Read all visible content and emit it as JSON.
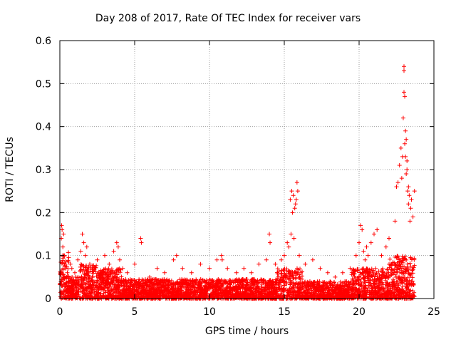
{
  "chart_data": {
    "type": "scatter",
    "title": "Day 208 of 2017, Rate Of TEC Index for receiver vars",
    "xlabel": "GPS time / hours",
    "ylabel": "ROTI / TECUs",
    "xlim": [
      0,
      25
    ],
    "ylim": [
      0,
      0.6
    ],
    "xticks": [
      "0",
      "5",
      "10",
      "15",
      "20",
      "25"
    ],
    "yticks": [
      "0",
      "0.1",
      "0.2",
      "0.3",
      "0.4",
      "0.5",
      "0.6"
    ],
    "grid": true,
    "marker": "+",
    "color": "#ff0000",
    "series": [
      {
        "x": [
          0.05,
          0.1,
          0.12,
          0.15,
          0.2,
          0.25,
          0.3,
          0.35,
          0.4,
          0.45,
          0.5,
          0.6,
          0.7,
          0.8,
          1.0,
          1.2,
          1.4,
          1.5,
          1.6,
          1.7,
          1.8,
          2.0,
          2.2,
          2.5,
          2.8,
          3.0,
          3.3,
          3.6,
          3.8,
          3.9,
          4.0,
          4.2,
          4.5,
          5.0,
          5.4,
          5.45,
          6.0,
          6.5,
          7.0,
          7.6,
          7.8,
          8.2,
          8.8,
          9.4,
          10.0,
          10.5,
          10.8,
          10.85,
          11.2,
          11.8,
          12.3,
          12.8,
          13.3,
          13.8,
          14.0,
          14.05,
          14.4,
          14.8,
          15.0,
          15.2,
          15.3,
          15.4,
          15.45,
          15.5,
          15.55,
          15.6,
          15.65,
          15.7,
          15.75,
          15.8,
          15.85,
          15.9,
          16.0,
          16.4,
          16.9,
          17.4,
          17.9,
          18.4,
          18.9,
          19.4,
          19.8,
          20.0,
          20.1,
          20.2,
          20.3,
          20.4,
          20.5,
          20.6,
          20.8,
          21.0,
          21.2,
          21.5,
          21.8,
          22.0,
          22.2,
          22.4,
          22.5,
          22.6,
          22.7,
          22.8,
          22.85,
          22.9,
          22.95,
          23.0,
          23.0,
          23.0,
          23.05,
          23.05,
          23.1,
          23.1,
          23.15,
          23.15,
          23.2,
          23.2,
          23.25,
          23.3,
          23.3,
          23.35,
          23.4,
          23.45,
          23.5,
          23.6,
          23.7
        ],
        "y": [
          0.06,
          0.14,
          0.17,
          0.16,
          0.12,
          0.15,
          0.1,
          0.08,
          0.07,
          0.05,
          0.06,
          0.05,
          0.08,
          0.07,
          0.06,
          0.09,
          0.11,
          0.15,
          0.13,
          0.1,
          0.12,
          0.08,
          0.07,
          0.09,
          0.06,
          0.1,
          0.08,
          0.11,
          0.13,
          0.12,
          0.09,
          0.07,
          0.06,
          0.08,
          0.14,
          0.13,
          0.05,
          0.07,
          0.06,
          0.09,
          0.1,
          0.07,
          0.06,
          0.08,
          0.07,
          0.09,
          0.1,
          0.09,
          0.07,
          0.06,
          0.07,
          0.06,
          0.08,
          0.09,
          0.15,
          0.13,
          0.08,
          0.09,
          0.1,
          0.13,
          0.12,
          0.23,
          0.15,
          0.25,
          0.2,
          0.24,
          0.14,
          0.21,
          0.22,
          0.23,
          0.27,
          0.25,
          0.1,
          0.08,
          0.09,
          0.07,
          0.06,
          0.05,
          0.06,
          0.07,
          0.1,
          0.13,
          0.17,
          0.16,
          0.11,
          0.09,
          0.12,
          0.1,
          0.13,
          0.15,
          0.16,
          0.1,
          0.12,
          0.14,
          0.08,
          0.18,
          0.26,
          0.27,
          0.31,
          0.35,
          0.28,
          0.33,
          0.42,
          0.53,
          0.54,
          0.48,
          0.47,
          0.36,
          0.33,
          0.39,
          0.29,
          0.37,
          0.3,
          0.32,
          0.25,
          0.26,
          0.22,
          0.24,
          0.18,
          0.21,
          0.23,
          0.19,
          0.25
        ]
      }
    ]
  }
}
